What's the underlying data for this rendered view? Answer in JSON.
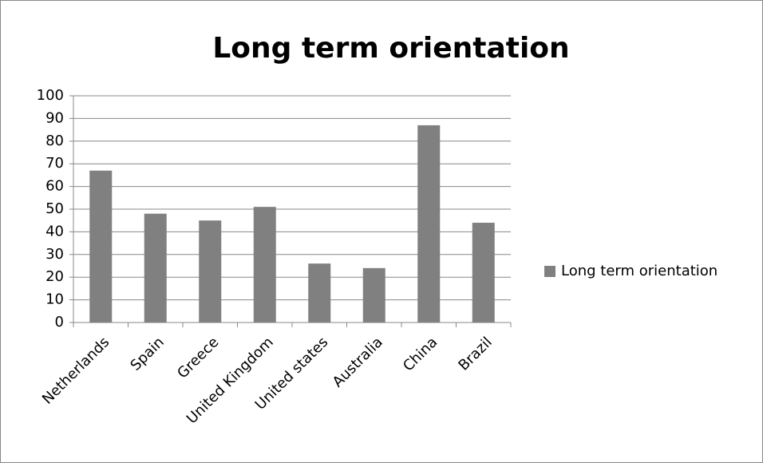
{
  "chart_data": {
    "type": "bar",
    "title": "Long term orientation",
    "categories": [
      "Netherlands",
      "Spain",
      "Greece",
      "United Kingdom",
      "United states",
      "Australia",
      "China",
      "Brazil"
    ],
    "series": [
      {
        "name": "Long term orientation",
        "color": "#808080",
        "values": [
          67,
          48,
          45,
          51,
          26,
          24,
          87,
          44
        ]
      }
    ],
    "ylim": [
      0,
      100
    ],
    "yticks": [
      0,
      10,
      20,
      30,
      40,
      50,
      60,
      70,
      80,
      90,
      100
    ],
    "grid": true,
    "legend": "right"
  }
}
